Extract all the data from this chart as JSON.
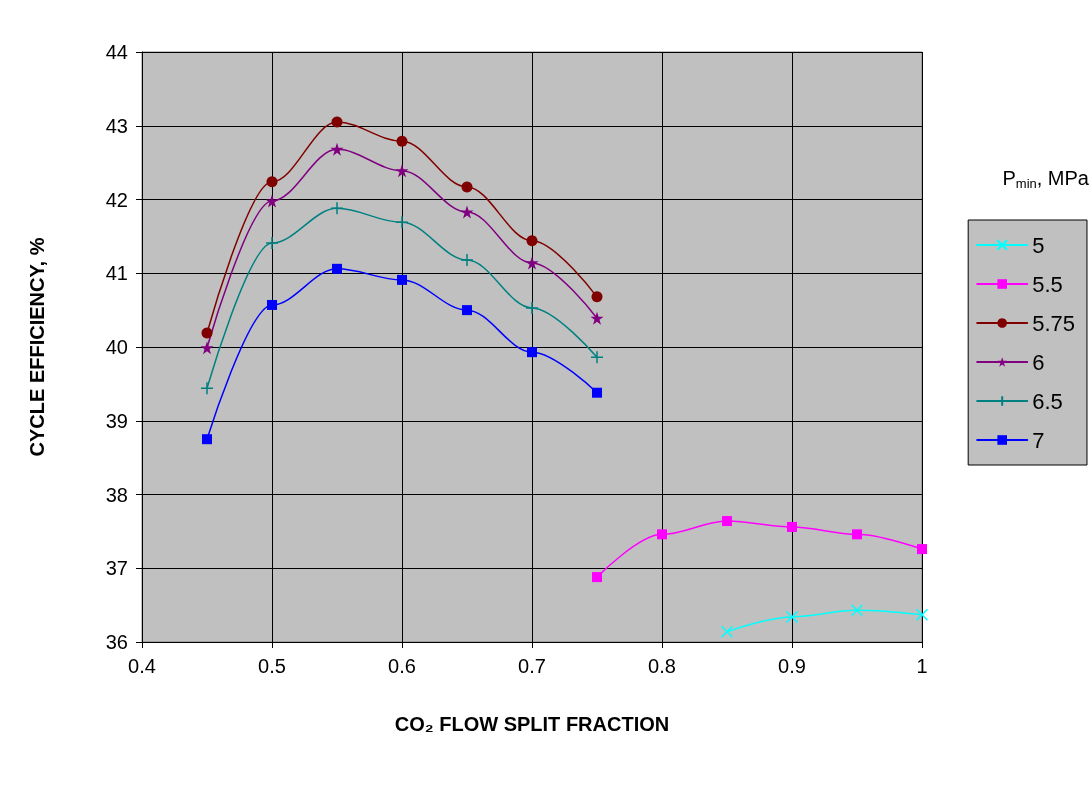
{
  "chart_data": {
    "type": "line",
    "xlabel": "CO₂ FLOW SPLIT FRACTION",
    "ylabel": "CYCLE EFFICIENCY, %",
    "legend_title": "P$_{min}$, MPa",
    "x": [
      0.45,
      0.5,
      0.55,
      0.6,
      0.65,
      0.7,
      0.75,
      0.8,
      0.85,
      0.9,
      0.95,
      1.0
    ],
    "series": [
      {
        "name": "5",
        "color": "#00ffff",
        "marker": "cross",
        "values": [
          null,
          null,
          null,
          null,
          null,
          null,
          null,
          null,
          36.14,
          36.34,
          36.43,
          36.37
        ]
      },
      {
        "name": "5.5",
        "color": "#ff00ff",
        "marker": "square",
        "values": [
          null,
          null,
          null,
          null,
          null,
          null,
          36.88,
          37.46,
          37.64,
          37.56,
          37.46,
          37.26
        ]
      },
      {
        "name": "5.75",
        "color": "#800000",
        "marker": "circle",
        "values": [
          40.19,
          42.24,
          43.05,
          42.79,
          42.17,
          41.44,
          40.68,
          null,
          null,
          null,
          null,
          null
        ]
      },
      {
        "name": "6",
        "color": "#800080",
        "marker": "star",
        "values": [
          39.99,
          41.98,
          42.68,
          42.39,
          41.83,
          41.14,
          40.39,
          null,
          null,
          null,
          null,
          null
        ]
      },
      {
        "name": "6.5",
        "color": "#008080",
        "marker": "plus",
        "values": [
          39.44,
          41.41,
          41.88,
          41.69,
          41.18,
          40.53,
          39.86,
          null,
          null,
          null,
          null,
          null
        ]
      },
      {
        "name": "7",
        "color": "#0000ff",
        "marker": "square",
        "values": [
          38.75,
          40.57,
          41.06,
          40.91,
          40.5,
          39.93,
          39.38,
          null,
          null,
          null,
          null,
          null
        ]
      }
    ],
    "xlim": [
      0.4,
      1
    ],
    "xticks": [
      0.4,
      0.5,
      0.6,
      0.7,
      0.8,
      0.9,
      1
    ],
    "ylim": [
      36,
      44
    ],
    "yticks": [
      36,
      37,
      38,
      39,
      40,
      41,
      42,
      43,
      44
    ],
    "grid": true,
    "legend": "right",
    "line_style": "solid"
  }
}
